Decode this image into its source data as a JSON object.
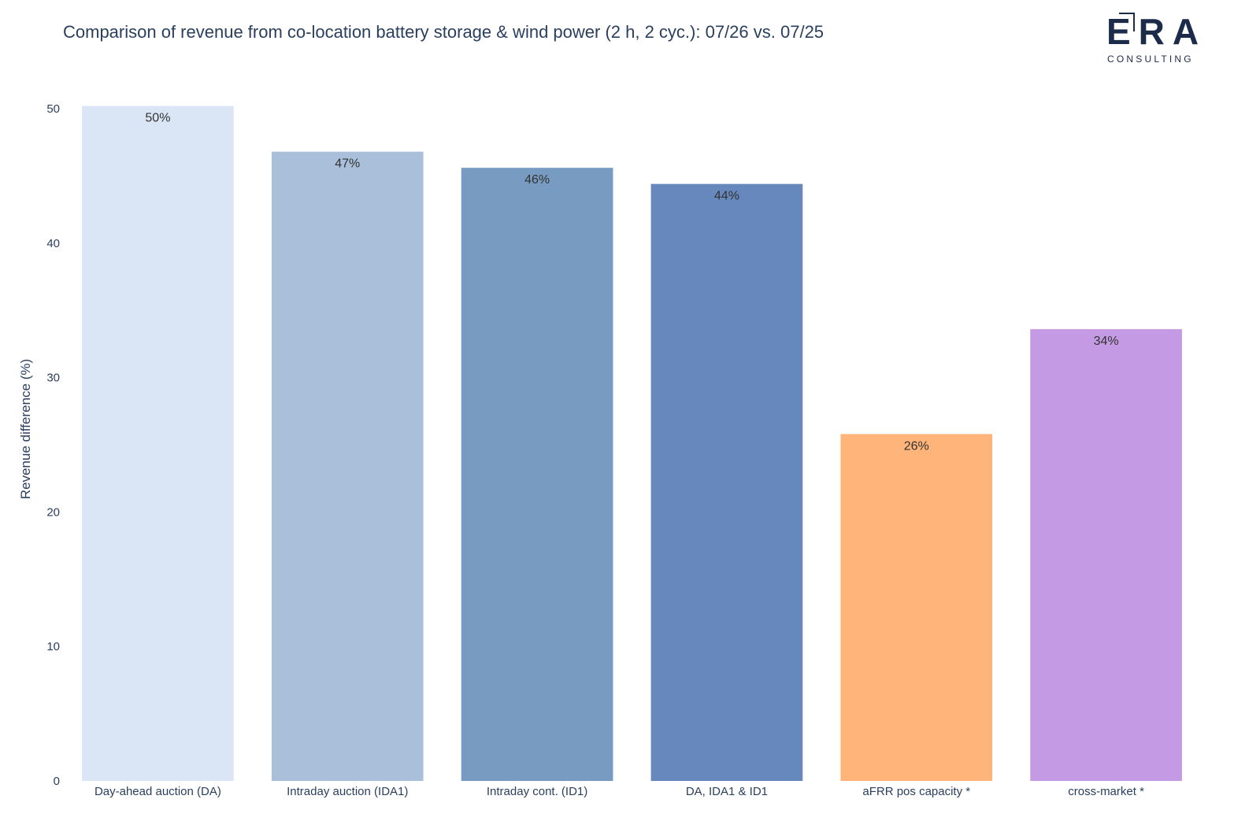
{
  "header": {
    "title": "Comparison of revenue from co-location battery storage & wind power (2 h, 2 cyc.): 07/26 vs. 07/25",
    "logo_text": "ERA",
    "logo_subtext": "CONSULTING"
  },
  "chart_data": {
    "type": "bar",
    "title": "Comparison of revenue from co-location battery storage & wind power (2 h, 2 cyc.): 07/26 vs. 07/25",
    "xlabel": "",
    "ylabel": "Revenue difference (%)",
    "ylim": [
      0,
      50
    ],
    "yticks": [
      0,
      10,
      20,
      30,
      40,
      50
    ],
    "grid": false,
    "categories": [
      "Day-ahead auction (DA)",
      "Intraday auction (IDA1)",
      "Intraday cont. (ID1)",
      "DA, IDA1 & ID1",
      "aFRR pos capacity *",
      "cross-market *"
    ],
    "values": [
      50.2,
      46.8,
      45.6,
      44.4,
      25.8,
      33.6
    ],
    "data_labels": [
      "50%",
      "47%",
      "46%",
      "44%",
      "26%",
      "34%"
    ],
    "colors": [
      "#dae6f6",
      "#aabfda",
      "#789bc2",
      "#6688bc",
      "#ffb47a",
      "#c39ae3"
    ]
  }
}
